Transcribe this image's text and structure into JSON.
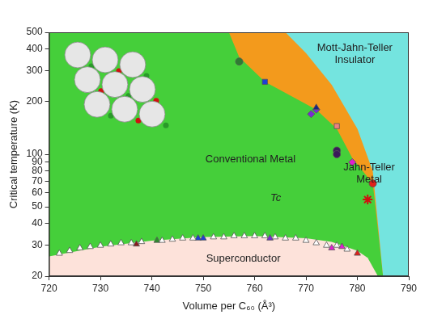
{
  "chart_data": {
    "type": "scatter",
    "x_label": "Volume per C₆₀ (Å³)",
    "y_label": "Critical temperature (K)",
    "xlim": [
      720,
      790
    ],
    "xticks": [
      720,
      730,
      740,
      750,
      760,
      770,
      780,
      790
    ],
    "ylim": [
      20,
      500
    ],
    "yticks": [
      20,
      30,
      40,
      50,
      60,
      70,
      80,
      90,
      100,
      200,
      300,
      400,
      500
    ],
    "log": "y",
    "grid": false,
    "regions": [
      {
        "label": "Conventional Metal",
        "color": "#45cf3a",
        "x": [
          720,
          790
        ],
        "lower": [
          20,
          20
        ],
        "upper": [
          500,
          500
        ]
      },
      {
        "label": "Jahn-Teller Metal",
        "color": "#f39a1c",
        "x": [
          755,
          757,
          762,
          772,
          776,
          779,
          783,
          785,
          790
        ],
        "lower": [
          500,
          360,
          260,
          180,
          140,
          95,
          68,
          20,
          20
        ],
        "upper": [
          500,
          500,
          500,
          500,
          500,
          500,
          500,
          500,
          500
        ]
      },
      {
        "label": "Mott-Jahn-Teller Insulator",
        "color": "#74e4df",
        "x": [
          766,
          770,
          775,
          780,
          783,
          785,
          790
        ],
        "lower": [
          500,
          380,
          250,
          140,
          80,
          20,
          20
        ],
        "upper": [
          500,
          500,
          500,
          500,
          500,
          500,
          500
        ]
      },
      {
        "label": "Superconductor",
        "color": "#fde2da",
        "x": [
          720,
          730,
          740,
          750,
          760,
          770,
          775,
          780,
          782,
          784
        ],
        "lower": [
          20,
          20,
          20,
          20,
          20,
          20,
          20,
          20,
          20,
          20
        ],
        "upper": [
          26,
          29.5,
          32,
          33.5,
          34,
          33,
          31.5,
          28,
          25.5,
          20
        ]
      }
    ],
    "annotations": [
      "Tc"
    ],
    "series": [
      {
        "marker": "triangle",
        "color": "#ffffff",
        "x": [
          722,
          724,
          726,
          728,
          730,
          732,
          734,
          736,
          738,
          742,
          744,
          746,
          748,
          752,
          754,
          756,
          758,
          760,
          762,
          764,
          766,
          768,
          770,
          772,
          774,
          776,
          778
        ],
        "values": [
          27,
          28,
          29,
          29.5,
          30,
          30.5,
          31,
          31,
          31.5,
          32,
          32.5,
          33,
          33,
          33.5,
          33.5,
          34,
          34,
          34,
          34,
          33.5,
          33,
          33,
          32,
          31,
          30,
          30,
          28.5
        ]
      },
      {
        "marker": "triangle",
        "color": "#8b1a1a",
        "x": [
          737
        ],
        "values": [
          30.5
        ]
      },
      {
        "marker": "triangle",
        "color": "#2e8b2e",
        "x": [
          741
        ],
        "values": [
          32
        ]
      },
      {
        "marker": "triangle",
        "color": "#1f3fd6",
        "x": [
          749,
          750
        ],
        "values": [
          33,
          33
        ]
      },
      {
        "marker": "triangle",
        "color": "#7a2bd6",
        "x": [
          763
        ],
        "values": [
          33
        ]
      },
      {
        "marker": "triangle",
        "color": "#e01fd0",
        "x": [
          775,
          777
        ],
        "values": [
          29,
          29.5
        ]
      },
      {
        "marker": "triangle",
        "color": "#e0201a",
        "x": [
          780
        ],
        "values": [
          27
        ]
      },
      {
        "marker": "circle",
        "color": "#2e7d32",
        "x": [
          757
        ],
        "values": [
          340
        ]
      },
      {
        "marker": "square",
        "color": "#1f3fd6",
        "x": [
          762
        ],
        "values": [
          260
        ]
      },
      {
        "marker": "triangle",
        "color": "#1a237e",
        "x": [
          772
        ],
        "values": [
          185
        ]
      },
      {
        "marker": "diamond",
        "color": "#7a2bd6",
        "x": [
          771,
          772
        ],
        "values": [
          170,
          180
        ]
      },
      {
        "marker": "square",
        "color": "#f08080",
        "x": [
          776
        ],
        "values": [
          145
        ]
      },
      {
        "marker": "circle",
        "color": "#3a1a5a",
        "x": [
          776,
          776
        ],
        "values": [
          105,
          100
        ]
      },
      {
        "marker": "diamond",
        "color": "#e01fd0",
        "x": [
          779
        ],
        "values": [
          90
        ]
      },
      {
        "marker": "circle",
        "color": "#e0201a",
        "x": [
          783
        ],
        "values": [
          68
        ]
      },
      {
        "marker": "star",
        "color": "#d01010",
        "x": [
          782
        ],
        "values": [
          55
        ]
      }
    ]
  }
}
